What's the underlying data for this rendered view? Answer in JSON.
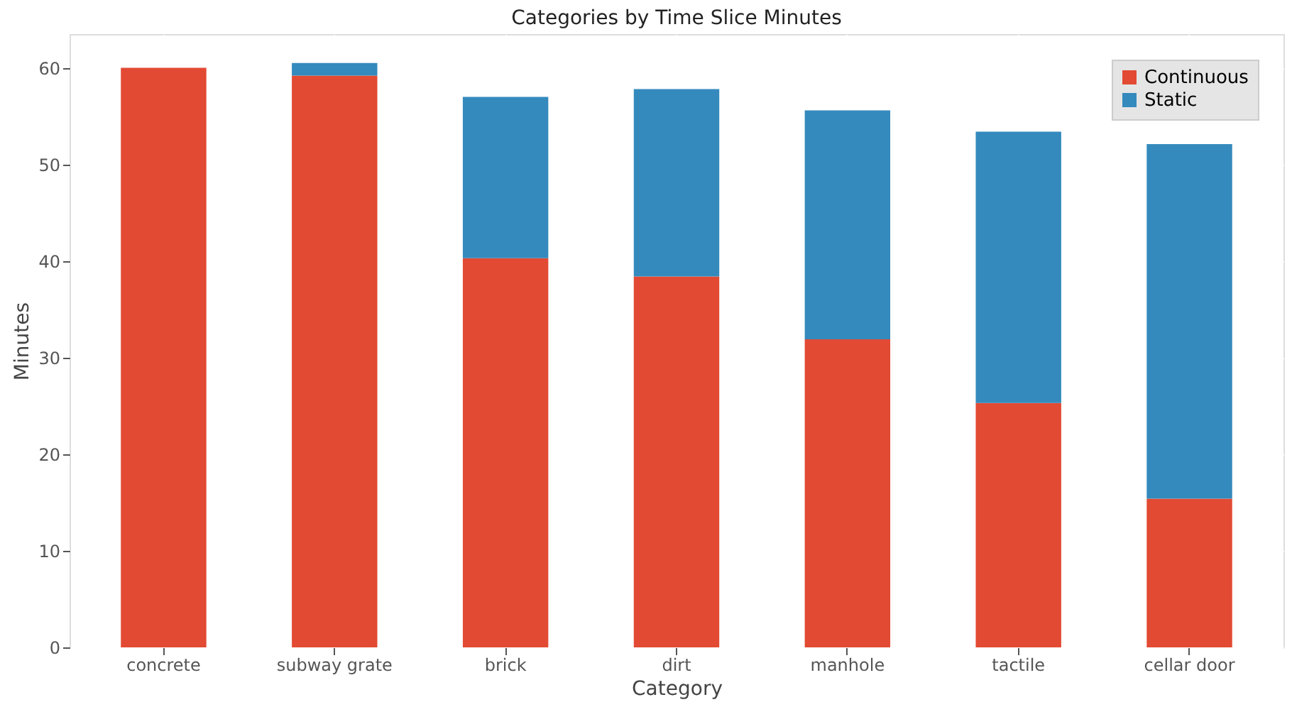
{
  "chart_data": {
    "type": "bar",
    "stacked": true,
    "title": "Categories by Time Slice Minutes",
    "xlabel": "Category",
    "ylabel": "Minutes",
    "categories": [
      "concrete",
      "subway grate",
      "brick",
      "dirt",
      "manhole",
      "tactile",
      "cellar door"
    ],
    "series": [
      {
        "name": "Continuous",
        "color": "#e24a33",
        "values": [
          60,
          59.2,
          40.3,
          38.4,
          31.9,
          25.3,
          15.4
        ]
      },
      {
        "name": "Static",
        "color": "#348abd",
        "values": [
          0,
          1.3,
          16.7,
          19.4,
          23.7,
          28.1,
          36.7
        ]
      }
    ],
    "ylim": [
      0,
      63.5
    ],
    "yticks": [
      0,
      10,
      20,
      30,
      40,
      50,
      60
    ],
    "grid": true,
    "legend": "top right"
  }
}
